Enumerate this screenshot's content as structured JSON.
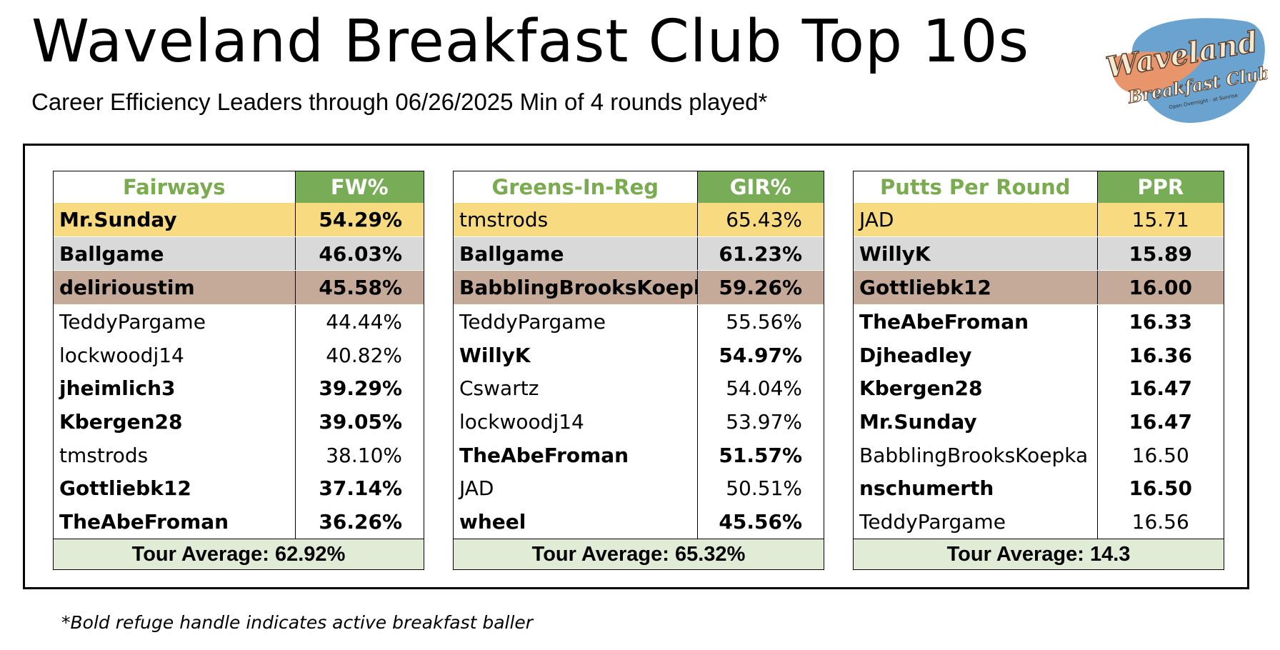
{
  "title": "Waveland Breakfast Club Top 10s",
  "subtitle": "Career Efficiency Leaders through 06/26/2025 Min of 4 rounds played*",
  "logo": {
    "line1": "Waveland",
    "line2": "Breakfast Club",
    "tagline": "Open Overnight · at Sunrise"
  },
  "boards": {
    "fairways": {
      "header_name": "Fairways",
      "header_value": "FW%",
      "rows": [
        {
          "name": "Mr.Sunday",
          "value": "54.29%",
          "bold": true
        },
        {
          "name": "Ballgame",
          "value": "46.03%",
          "bold": true
        },
        {
          "name": "delirioustim",
          "value": "45.58%",
          "bold": true
        },
        {
          "name": "TeddyPargame",
          "value": "44.44%",
          "bold": false
        },
        {
          "name": "lockwoodj14",
          "value": "40.82%",
          "bold": false
        },
        {
          "name": "jheimlich3",
          "value": "39.29%",
          "bold": true
        },
        {
          "name": "Kbergen28",
          "value": "39.05%",
          "bold": true
        },
        {
          "name": "tmstrods",
          "value": "38.10%",
          "bold": false
        },
        {
          "name": "Gottliebk12",
          "value": "37.14%",
          "bold": true
        },
        {
          "name": "TheAbeFroman",
          "value": "36.26%",
          "bold": true
        }
      ],
      "average": "Tour Average: 62.92%"
    },
    "gir": {
      "header_name": "Greens-In-Reg",
      "header_value": "GIR%",
      "rows": [
        {
          "name": "tmstrods",
          "value": "65.43%",
          "bold": false
        },
        {
          "name": "Ballgame",
          "value": "61.23%",
          "bold": true
        },
        {
          "name": "BabblingBrooksKoepka",
          "value": "59.26%",
          "bold": true
        },
        {
          "name": "TeddyPargame",
          "value": "55.56%",
          "bold": false
        },
        {
          "name": "WillyK",
          "value": "54.97%",
          "bold": true
        },
        {
          "name": "Cswartz",
          "value": "54.04%",
          "bold": false
        },
        {
          "name": "lockwoodj14",
          "value": "53.97%",
          "bold": false
        },
        {
          "name": "TheAbeFroman",
          "value": "51.57%",
          "bold": true
        },
        {
          "name": "JAD",
          "value": "50.51%",
          "bold": false
        },
        {
          "name": "wheel",
          "value": "45.56%",
          "bold": true
        }
      ],
      "average": "Tour Average: 65.32%"
    },
    "ppr": {
      "header_name": "Putts Per Round",
      "header_value": "PPR",
      "rows": [
        {
          "name": "JAD",
          "value": "15.71",
          "bold": false
        },
        {
          "name": "WillyK",
          "value": "15.89",
          "bold": true
        },
        {
          "name": "Gottliebk12",
          "value": "16.00",
          "bold": true
        },
        {
          "name": "TheAbeFroman",
          "value": "16.33",
          "bold": true
        },
        {
          "name": "Djheadley",
          "value": "16.36",
          "bold": true
        },
        {
          "name": "Kbergen28",
          "value": "16.47",
          "bold": true
        },
        {
          "name": "Mr.Sunday",
          "value": "16.47",
          "bold": true
        },
        {
          "name": "BabblingBrooksKoepka",
          "value": "16.50",
          "bold": false
        },
        {
          "name": "nschumerth",
          "value": "16.50",
          "bold": true
        },
        {
          "name": "TeddyPargame",
          "value": "16.56",
          "bold": false
        }
      ],
      "average": "Tour Average: 14.3"
    }
  },
  "colors": {
    "header_green": "#78ac56",
    "name_header_green": "#7aab4f",
    "gold": "#f8db80",
    "silver": "#d9d9d9",
    "bronze": "#c5aa99",
    "average_bg": "#e1ecd6"
  },
  "footnote": "*Bold refuge handle indicates active breakfast baller"
}
